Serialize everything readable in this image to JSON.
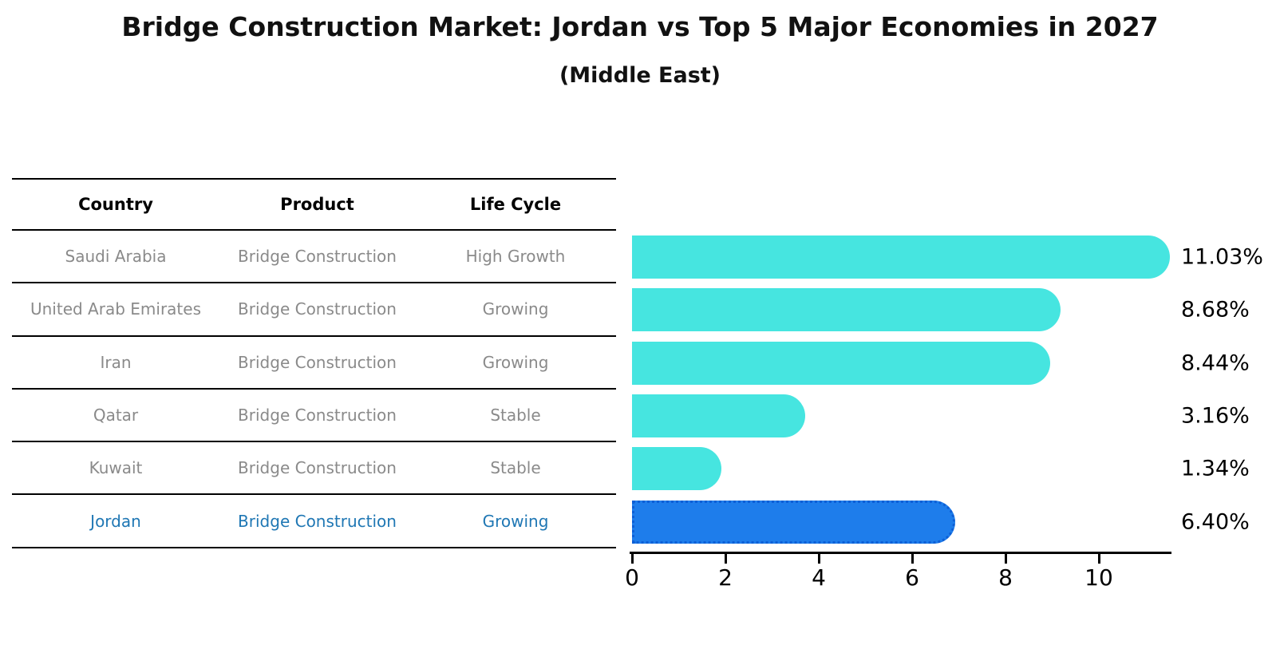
{
  "title": "Bridge Construction Market: Jordan vs Top 5 Major Economies in 2027",
  "subtitle": "(Middle East)",
  "table": {
    "headers": {
      "country": "Country",
      "product": "Product",
      "life_cycle": "Life Cycle"
    },
    "rows": [
      {
        "country": "Saudi Arabia",
        "product": "Bridge Construction",
        "life_cycle": "High Growth",
        "highlight": false
      },
      {
        "country": "United Arab Emirates",
        "product": "Bridge Construction",
        "life_cycle": "Growing",
        "highlight": false
      },
      {
        "country": "Iran",
        "product": "Bridge Construction",
        "life_cycle": "Growing",
        "highlight": false
      },
      {
        "country": "Qatar",
        "product": "Bridge Construction",
        "life_cycle": "Stable",
        "highlight": false
      },
      {
        "country": "Kuwait",
        "product": "Bridge Construction",
        "life_cycle": "Stable",
        "highlight": false
      },
      {
        "country": "Jordan",
        "product": "Bridge Construction",
        "life_cycle": "Growing",
        "highlight": true
      }
    ]
  },
  "chart_data": {
    "type": "bar",
    "orientation": "horizontal",
    "title": "Bridge Construction Market: Jordan vs Top 5 Major Economies in 2027",
    "subtitle": "(Middle East)",
    "categories": [
      "Saudi Arabia",
      "United Arab Emirates",
      "Iran",
      "Qatar",
      "Kuwait",
      "Jordan"
    ],
    "values": [
      11.03,
      8.68,
      8.44,
      3.16,
      1.34,
      6.4
    ],
    "value_labels": [
      "11.03%",
      "8.68%",
      "8.44%",
      "3.16%",
      "1.34%",
      "6.40%"
    ],
    "x_ticks": [
      0,
      2,
      4,
      6,
      8,
      10
    ],
    "xlim": [
      0,
      11.6
    ],
    "grid": false,
    "legend": "none",
    "highlight_index": 5,
    "colors": {
      "bar": "#46e5e0",
      "highlight_bar": "#1e7deb",
      "highlight_bar_border": "#0d5fd6",
      "highlight_text": "#1f77b4",
      "row_text": "#8a8a8a",
      "axis": "#000000"
    }
  }
}
